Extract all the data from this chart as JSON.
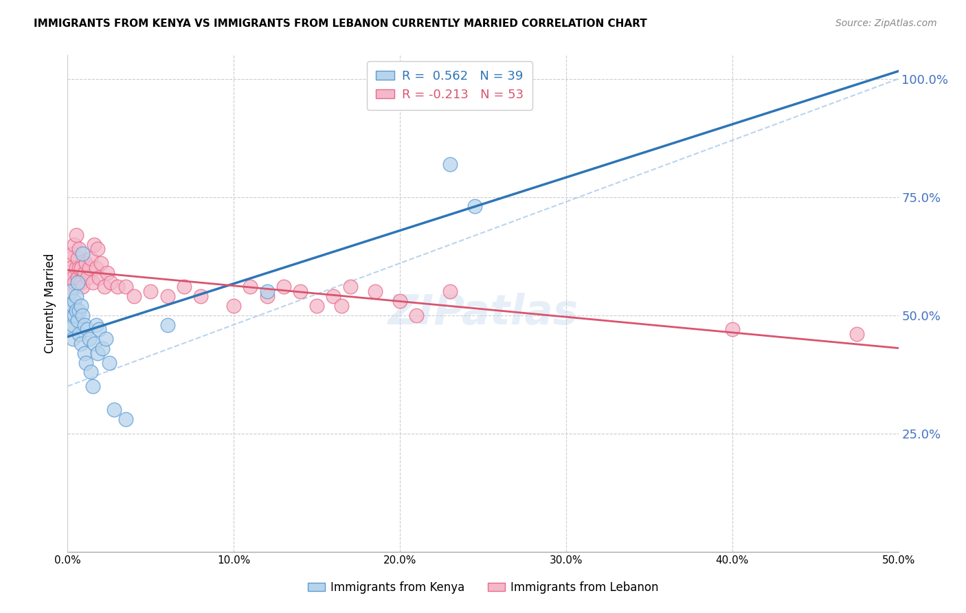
{
  "title": "IMMIGRANTS FROM KENYA VS IMMIGRANTS FROM LEBANON CURRENTLY MARRIED CORRELATION CHART",
  "source": "Source: ZipAtlas.com",
  "ylabel": "Currently Married",
  "xlim": [
    0.0,
    0.5
  ],
  "ylim": [
    0.0,
    1.05
  ],
  "xtick_values": [
    0.0,
    0.1,
    0.2,
    0.3,
    0.4,
    0.5
  ],
  "ytick_values": [
    0.25,
    0.5,
    0.75,
    1.0
  ],
  "kenya_fill_color": "#b8d4eb",
  "kenya_edge_color": "#5b9bd5",
  "lebanon_fill_color": "#f4b8ca",
  "lebanon_edge_color": "#e8698a",
  "kenya_line_color": "#2e75b6",
  "lebanon_line_color": "#d9546e",
  "diagonal_color": "#9dc3e6",
  "kenya_R": 0.562,
  "kenya_N": 39,
  "lebanon_R": -0.213,
  "lebanon_N": 53,
  "watermark": "ZIPatlas",
  "background_color": "#ffffff",
  "grid_color": "#cccccc",
  "kenya_scatter_x": [
    0.001,
    0.001,
    0.002,
    0.002,
    0.003,
    0.003,
    0.003,
    0.004,
    0.004,
    0.005,
    0.005,
    0.006,
    0.006,
    0.007,
    0.007,
    0.008,
    0.008,
    0.009,
    0.009,
    0.01,
    0.01,
    0.011,
    0.012,
    0.013,
    0.014,
    0.015,
    0.016,
    0.017,
    0.018,
    0.019,
    0.021,
    0.023,
    0.025,
    0.028,
    0.035,
    0.06,
    0.12,
    0.23,
    0.245
  ],
  "kenya_scatter_y": [
    0.47,
    0.52,
    0.5,
    0.55,
    0.48,
    0.52,
    0.45,
    0.5,
    0.53,
    0.51,
    0.54,
    0.49,
    0.57,
    0.51,
    0.46,
    0.44,
    0.52,
    0.63,
    0.5,
    0.48,
    0.42,
    0.4,
    0.47,
    0.45,
    0.38,
    0.35,
    0.44,
    0.48,
    0.42,
    0.47,
    0.43,
    0.45,
    0.4,
    0.3,
    0.28,
    0.48,
    0.55,
    0.82,
    0.73
  ],
  "lebanon_scatter_x": [
    0.001,
    0.001,
    0.002,
    0.002,
    0.003,
    0.003,
    0.004,
    0.004,
    0.005,
    0.005,
    0.006,
    0.006,
    0.007,
    0.007,
    0.008,
    0.008,
    0.009,
    0.01,
    0.011,
    0.012,
    0.013,
    0.014,
    0.015,
    0.016,
    0.017,
    0.018,
    0.019,
    0.02,
    0.022,
    0.024,
    0.026,
    0.03,
    0.035,
    0.04,
    0.05,
    0.06,
    0.07,
    0.08,
    0.1,
    0.11,
    0.12,
    0.13,
    0.14,
    0.15,
    0.16,
    0.165,
    0.17,
    0.185,
    0.2,
    0.21,
    0.23,
    0.4,
    0.475
  ],
  "lebanon_scatter_y": [
    0.57,
    0.62,
    0.6,
    0.55,
    0.58,
    0.63,
    0.57,
    0.65,
    0.6,
    0.67,
    0.58,
    0.62,
    0.6,
    0.64,
    0.57,
    0.6,
    0.56,
    0.59,
    0.61,
    0.58,
    0.6,
    0.62,
    0.57,
    0.65,
    0.6,
    0.64,
    0.58,
    0.61,
    0.56,
    0.59,
    0.57,
    0.56,
    0.56,
    0.54,
    0.55,
    0.54,
    0.56,
    0.54,
    0.52,
    0.56,
    0.54,
    0.56,
    0.55,
    0.52,
    0.54,
    0.52,
    0.56,
    0.55,
    0.53,
    0.5,
    0.55,
    0.47,
    0.46
  ]
}
